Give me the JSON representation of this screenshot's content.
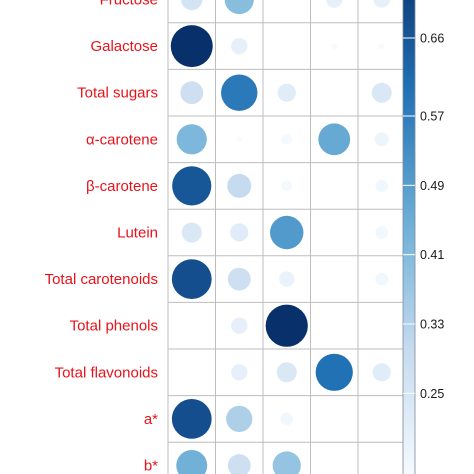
{
  "chart_data": {
    "type": "heatmap",
    "title": "",
    "xlabel": "",
    "ylabel": "",
    "rows": [
      "Fructose",
      "Galactose",
      "Total sugars",
      "α-carotene",
      "β-carotene",
      "Lutein",
      "Total carotenoids",
      "Total phenols",
      "Total flavonoids",
      "a*",
      "b*"
    ],
    "values": [
      [
        0.26,
        0.4,
        null,
        0.2,
        0.2
      ],
      [
        0.75,
        0.2,
        null,
        0.15,
        0.15
      ],
      [
        0.28,
        0.58,
        0.22,
        null,
        0.24
      ],
      [
        0.42,
        0.15,
        0.16,
        0.46,
        0.18
      ],
      [
        0.66,
        0.3,
        0.16,
        null,
        0.17
      ],
      [
        0.24,
        0.22,
        0.5,
        null,
        0.17
      ],
      [
        0.68,
        0.28,
        0.19,
        null,
        0.17
      ],
      [
        null,
        0.2,
        0.76,
        null,
        null
      ],
      [
        null,
        0.2,
        0.24,
        0.6,
        0.22
      ],
      [
        0.68,
        0.34,
        0.17,
        null,
        null
      ],
      [
        0.44,
        0.28,
        0.38,
        null,
        null
      ]
    ],
    "colorbar": {
      "ticks": [
        0.66,
        0.57,
        0.49,
        0.41,
        0.33,
        0.25
      ],
      "range": [
        0.15,
        0.75
      ],
      "low_color": "#f7fbff",
      "high_color": "#08306b"
    },
    "grid": true,
    "legend_position": "right"
  }
}
